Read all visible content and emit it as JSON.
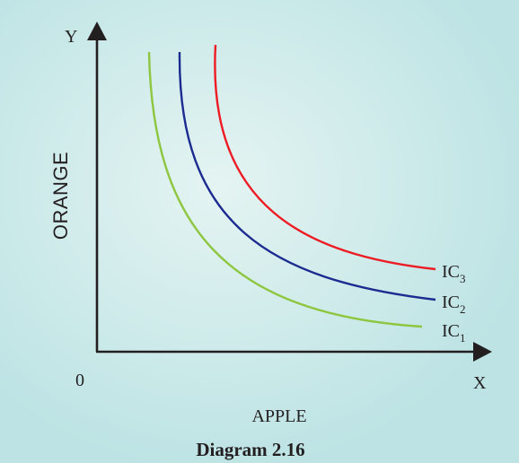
{
  "diagram": {
    "y_axis_letter": "Y",
    "x_axis_letter": "X",
    "origin": "0",
    "y_label": "ORANGE",
    "x_label": "APPLE",
    "caption": "Diagram 2.16",
    "curves": [
      {
        "prefix": "IC",
        "sub": "1",
        "color": "#8dc63f"
      },
      {
        "prefix": "IC",
        "sub": "2",
        "color": "#1b2b8f"
      },
      {
        "prefix": "IC",
        "sub": "3",
        "color": "#ed1c24"
      }
    ],
    "colors": {
      "background_center": "#e4f4f2",
      "background_edge": "#bde3e4",
      "axis": "#231f20",
      "text": "#231f20"
    }
  }
}
